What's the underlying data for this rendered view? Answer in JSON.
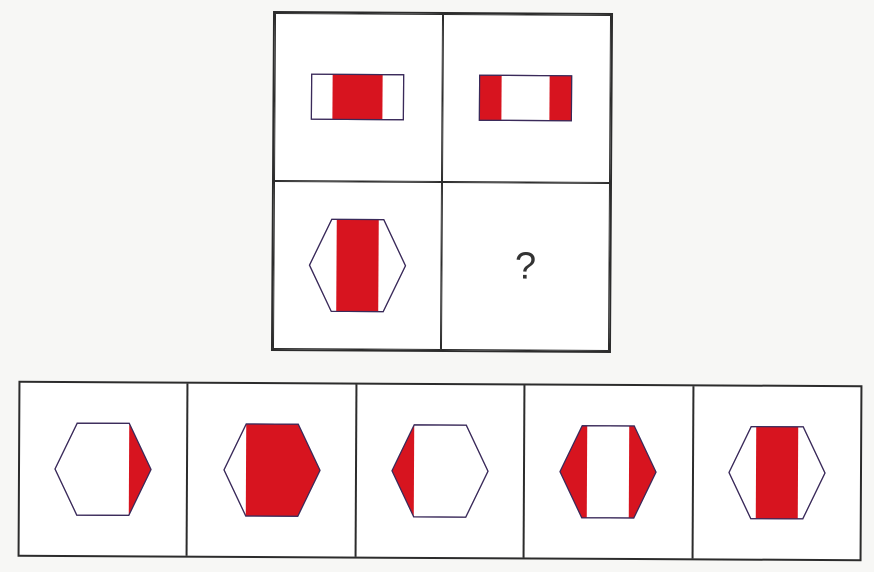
{
  "puzzle": {
    "question_mark": "?"
  },
  "colors": {
    "fill": "#d7141f",
    "outline": "#3a2a5a",
    "border": "#2c2c2c",
    "background": "#ffffff"
  },
  "icons": {
    "matrix": [
      "rectangle-center-red-icon",
      "rectangle-sides-red-icon",
      "hexagon-center-red-icon",
      "question-mark"
    ],
    "options": [
      "hexagon-right-tip-red-icon",
      "hexagon-right-two-thirds-red-icon",
      "hexagon-left-tip-red-icon",
      "hexagon-both-tips-red-icon",
      "hexagon-center-red-icon"
    ]
  }
}
